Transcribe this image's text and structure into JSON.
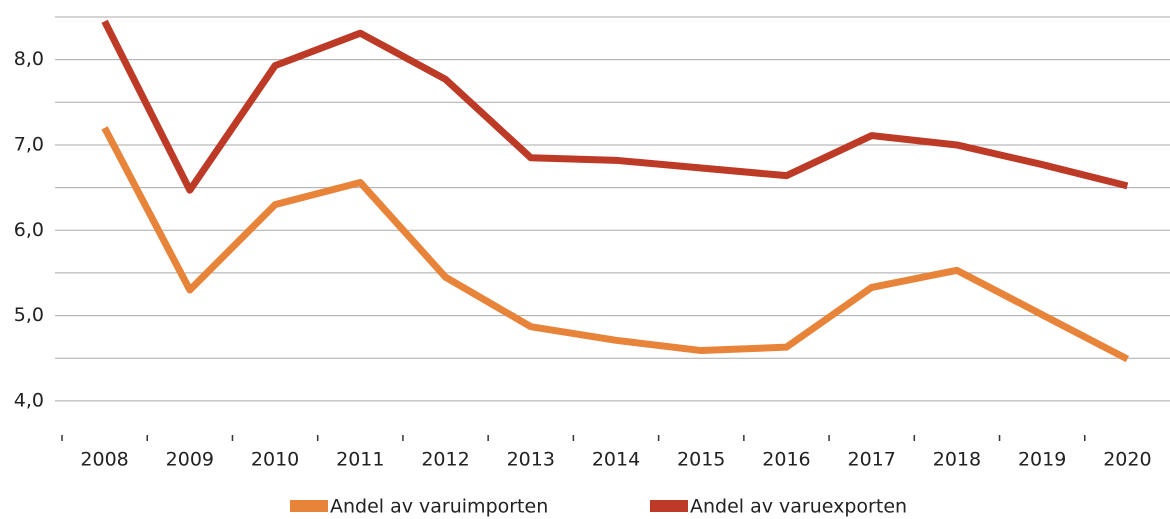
{
  "chart_data": {
    "type": "line",
    "categories": [
      "2008",
      "2009",
      "2010",
      "2011",
      "2012",
      "2013",
      "2014",
      "2015",
      "2016",
      "2017",
      "2018",
      "2019",
      "2020"
    ],
    "series": [
      {
        "name": "Andel av varuimporten",
        "color": "#e8833a",
        "values": [
          7.2,
          5.3,
          6.3,
          6.56,
          5.45,
          4.87,
          4.71,
          4.59,
          4.63,
          5.33,
          5.53,
          5.01,
          4.49
        ]
      },
      {
        "name": "Andel av varuexporten",
        "color": "#bd3a26",
        "values": [
          8.45,
          6.47,
          7.93,
          8.31,
          7.77,
          6.85,
          6.82,
          6.73,
          6.64,
          7.11,
          7.0,
          6.77,
          6.52
        ]
      }
    ],
    "ylim": [
      3.6,
      8.5
    ],
    "yticks": [
      {
        "value": 4,
        "label": "4,0"
      },
      {
        "value": 5,
        "label": "5,0"
      },
      {
        "value": 6,
        "label": "6,0"
      },
      {
        "value": 7,
        "label": "7,0"
      },
      {
        "value": 8,
        "label": "8,0"
      }
    ],
    "grid": true,
    "legend": "bottom"
  }
}
